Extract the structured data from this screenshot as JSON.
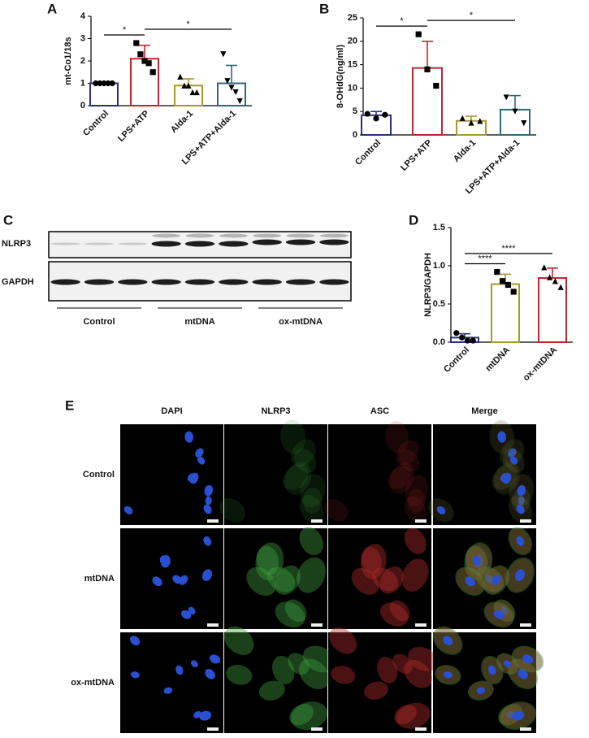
{
  "chart_data": [
    {
      "type": "bar",
      "label": "A",
      "y_label": "mt-Co1/18s",
      "categories": [
        "Control",
        "LPS+ATP",
        "Alda-1",
        "LPS+ATP+Alda-1"
      ],
      "values": [
        1.0,
        2.1,
        0.9,
        1.0
      ],
      "errors": [
        0,
        0.6,
        0.3,
        0.8
      ],
      "points": [
        [
          1,
          1,
          1,
          1,
          1
        ],
        [
          2.8,
          2.3,
          2.0,
          1.9,
          1.5
        ],
        [
          1.3,
          0.9,
          0.9,
          0.6,
          0.6
        ],
        [
          2.3,
          1.1,
          0.8,
          0.6,
          0.2
        ]
      ],
      "colors": [
        "#2b2f7a",
        "#c0262d",
        "#a59a2a",
        "#2e6a78"
      ],
      "markers": [
        "circle",
        "square",
        "triangle",
        "triangle-down"
      ],
      "ylim": [
        0,
        4
      ],
      "yticks": [
        0,
        1,
        2,
        3,
        4
      ],
      "significance": [
        {
          "between": [
            "Control",
            "LPS+ATP"
          ],
          "label": "*"
        },
        {
          "between": [
            "LPS+ATP",
            "LPS+ATP+Alda-1"
          ],
          "label": "*"
        }
      ]
    },
    {
      "type": "bar",
      "label": "B",
      "y_label": "8-OHdG(ng/ml)",
      "categories": [
        "Control",
        "LPS+ATP",
        "Alda-1",
        "LPS+ATP+Alda-1"
      ],
      "values": [
        4.2,
        14.3,
        3.0,
        5.4
      ],
      "errors": [
        0.8,
        5.7,
        1.0,
        3.0
      ],
      "points": [
        [
          4.5,
          3.5,
          4.3
        ],
        [
          21.5,
          14,
          10.5
        ],
        [
          3.6,
          2.6,
          3.0
        ],
        [
          8,
          5,
          2.5
        ]
      ],
      "colors": [
        "#2b2f7a",
        "#c0262d",
        "#a59a2a",
        "#2e6a78"
      ],
      "markers": [
        "circle",
        "square",
        "triangle",
        "triangle-down"
      ],
      "ylim": [
        0,
        25
      ],
      "yticks": [
        0,
        5,
        10,
        15,
        20,
        25
      ],
      "significance": [
        {
          "between": [
            "Control",
            "LPS+ATP"
          ],
          "label": "*"
        },
        {
          "between": [
            "LPS+ATP",
            "LPS+ATP+Alda-1"
          ],
          "label": "*"
        }
      ]
    },
    {
      "type": "bar",
      "label": "D",
      "y_label": "NLRP3/GAPDH",
      "categories": [
        "Control",
        "mtDNA",
        "ox-mtDNA"
      ],
      "values": [
        0.06,
        0.76,
        0.84
      ],
      "errors": [
        0.05,
        0.13,
        0.13
      ],
      "points": [
        [
          0.12,
          0.06,
          0.02,
          0.02
        ],
        [
          0.92,
          0.8,
          0.75,
          0.66
        ],
        [
          0.98,
          0.85,
          0.8,
          0.72
        ]
      ],
      "colors": [
        "#2b2f7a",
        "#a59a2a",
        "#c0262d"
      ],
      "markers": [
        "circle",
        "square",
        "triangle"
      ],
      "ylim": [
        0,
        1.5
      ],
      "yticks": [
        {
          "value": 0,
          "label": "0.0"
        },
        {
          "value": 0.5,
          "label": "0.5"
        },
        {
          "value": 1,
          "label": "1.0"
        },
        {
          "value": 1.5,
          "label": "1.5"
        }
      ],
      "significance": [
        {
          "between": [
            "Control",
            "mtDNA"
          ],
          "label": "****"
        },
        {
          "between": [
            "Control",
            "ox-mtDNA"
          ],
          "label": "****"
        }
      ]
    }
  ],
  "blot": {
    "label": "C",
    "rows": [
      "NLRP3",
      "GAPDH"
    ],
    "groups": [
      "Control",
      "mtDNA",
      "ox-mtDNA"
    ]
  },
  "micrograph": {
    "label": "E",
    "columns": [
      "DAPI",
      "NLRP3",
      "ASC",
      "Merge"
    ],
    "rows": [
      "Control",
      "mtDNA",
      "ox-mtDNA"
    ]
  }
}
